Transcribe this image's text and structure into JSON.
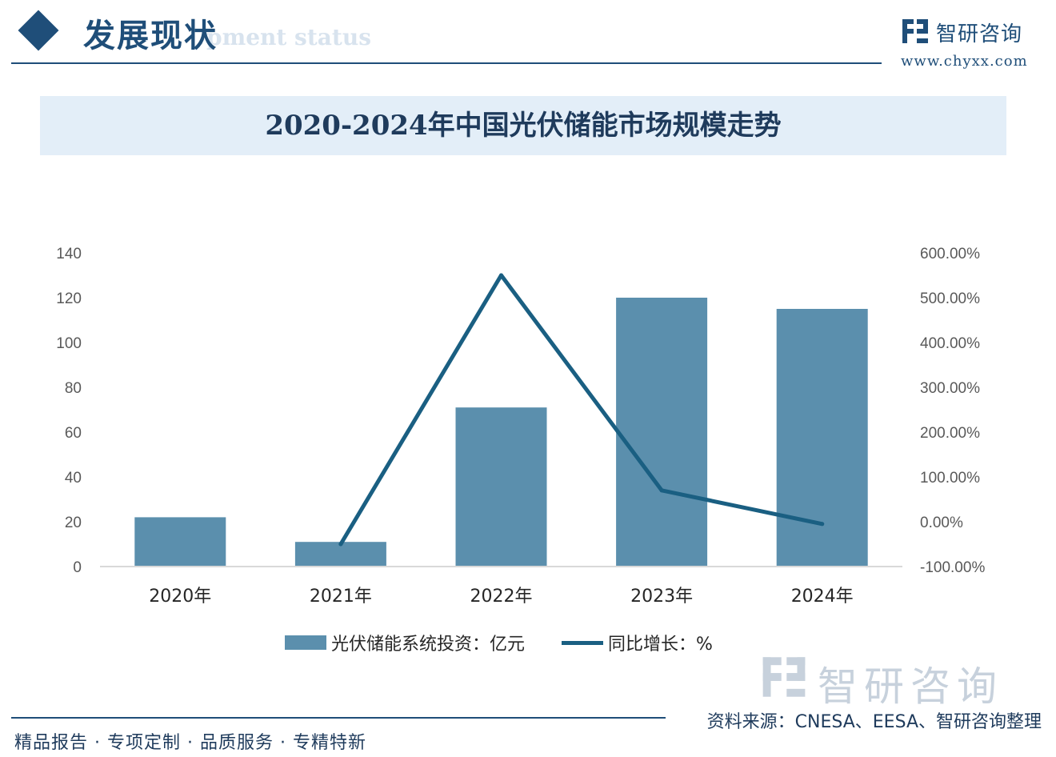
{
  "header": {
    "title": "发展现状",
    "subtitle": "pment status"
  },
  "brand": {
    "name": "智研咨询",
    "url": "www.chyxx.com"
  },
  "chart_data": {
    "type": "bar+line",
    "title": "2020-2024年中国光伏储能市场规模走势",
    "categories": [
      "2020年",
      "2021年",
      "2022年",
      "2023年",
      "2024年"
    ],
    "series": [
      {
        "name": "光伏储能系统投资：亿元",
        "type": "bar",
        "axis": "left",
        "color": "#5b8fad",
        "values": [
          22,
          11,
          71,
          120,
          115
        ]
      },
      {
        "name": "同比增长：%",
        "type": "line",
        "axis": "right",
        "color": "#1a5f82",
        "values": [
          null,
          -50,
          550,
          70,
          -5
        ]
      }
    ],
    "y_left": {
      "min": 0,
      "max": 140,
      "ticks": [
        "0",
        "20",
        "40",
        "60",
        "80",
        "100",
        "120",
        "140"
      ]
    },
    "y_right": {
      "min": -100,
      "max": 600,
      "ticks": [
        "-100.00%",
        "0.00%",
        "100.00%",
        "200.00%",
        "300.00%",
        "400.00%",
        "500.00%",
        "600.00%"
      ]
    },
    "grid": false,
    "legend_position": "bottom"
  },
  "footer": {
    "brand": "智研咨询",
    "source": "资料来源：CNESA、EESA、智研咨询整理",
    "slogan": "精品报告 · 专项定制 · 品质服务 · 专精特新"
  }
}
